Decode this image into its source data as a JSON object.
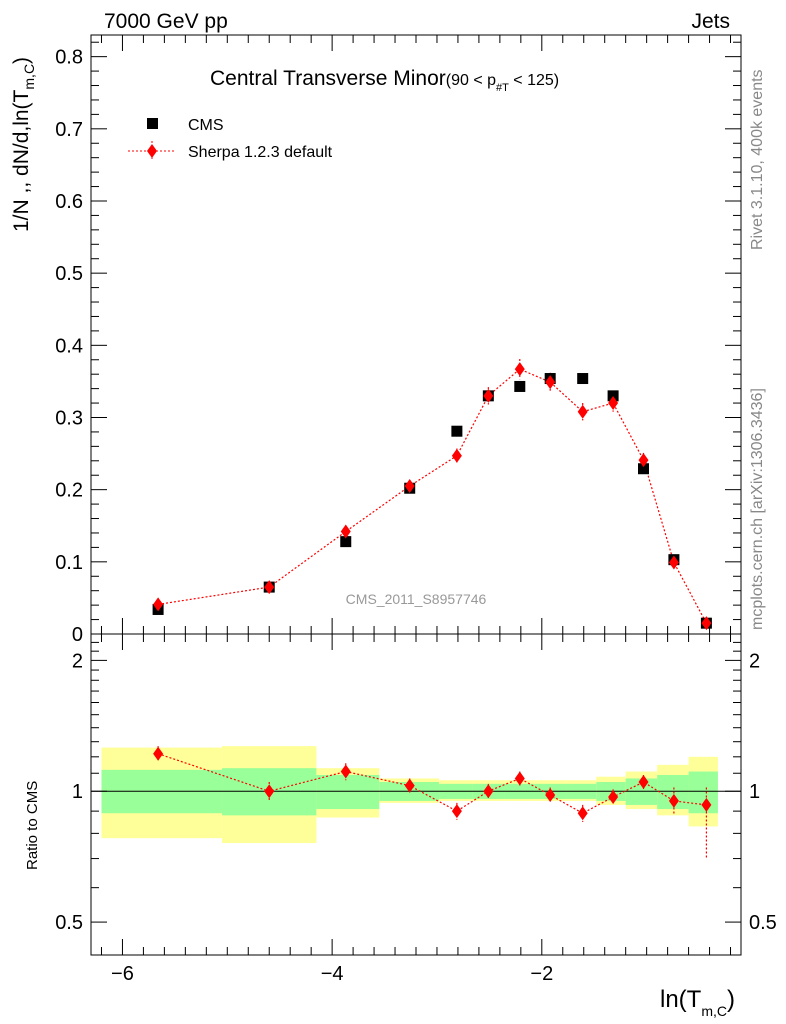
{
  "header": {
    "left": "7000 GeV pp",
    "right": "Jets"
  },
  "side_text": {
    "rivet": "Rivet 3.1.10,  400k events",
    "mcplots": "mcplots.cern.ch [arXiv:1306.3436]"
  },
  "colors": {
    "data": "#000000",
    "mc": "#ff0000",
    "band_inner": "#99ff99",
    "band_outer": "#ffff99"
  },
  "chart_data": {
    "type": "scatter",
    "title": "Central Transverse Minor",
    "title_suffix": "(90 < p",
    "title_suffix_sub": "#T",
    "title_suffix_end": " < 125)",
    "watermark": "CMS_2011_S8957746",
    "xlabel": "ln(T",
    "xlabel_sub": "m,C",
    "xlabel_end": ")",
    "ylabel": "1/N ,, dN/d,ln(T",
    "ylabel_sub": "m,C",
    "ylabel_end": ")",
    "ratio_ylabel": "Ratio to CMS",
    "xlim": [
      -6.3,
      -0.1
    ],
    "ylim": [
      0,
      0.83
    ],
    "ratio_ylim": [
      0.42,
      2.3
    ],
    "x_ticks": [
      -6,
      -4,
      -2
    ],
    "x_tick_labels": [
      "−6",
      "−4",
      "−2"
    ],
    "y_ticks": [
      0,
      0.1,
      0.2,
      0.3,
      0.4,
      0.5,
      0.6,
      0.7,
      0.8
    ],
    "y_tick_labels": [
      "0",
      "0.1",
      "0.2",
      "0.3",
      "0.4",
      "0.5",
      "0.6",
      "0.7",
      "0.8"
    ],
    "ratio_ticks": [
      0.5,
      1,
      2
    ],
    "ratio_tick_labels": [
      "0.5",
      "1",
      "2"
    ],
    "legend": {
      "data_label": "CMS",
      "mc_label": "Sherpa 1.2.3 default",
      "placement": "top-left"
    },
    "bins": [
      {
        "lo": -6.2,
        "hi": -5.05
      },
      {
        "lo": -5.05,
        "hi": -4.15
      },
      {
        "lo": -4.15,
        "hi": -3.55
      },
      {
        "lo": -3.55,
        "hi": -2.98
      },
      {
        "lo": -2.98,
        "hi": -2.66
      },
      {
        "lo": -2.66,
        "hi": -2.36
      },
      {
        "lo": -2.36,
        "hi": -2.07
      },
      {
        "lo": -2.07,
        "hi": -1.76
      },
      {
        "lo": -1.76,
        "hi": -1.48
      },
      {
        "lo": -1.48,
        "hi": -1.2
      },
      {
        "lo": -1.2,
        "hi": -0.9
      },
      {
        "lo": -0.9,
        "hi": -0.6
      },
      {
        "lo": -0.6,
        "hi": -0.32
      }
    ],
    "series": [
      {
        "name": "CMS",
        "x": [
          -5.66,
          -4.6,
          -3.87,
          -3.26,
          -2.81,
          -2.51,
          -2.21,
          -1.92,
          -1.61,
          -1.32,
          -1.03,
          -0.74,
          -0.43
        ],
        "y": [
          0.034,
          0.065,
          0.128,
          0.202,
          0.281,
          0.33,
          0.343,
          0.354,
          0.354,
          0.33,
          0.229,
          0.103,
          0.015
        ]
      },
      {
        "name": "Sherpa 1.2.3 default",
        "x": [
          -5.66,
          -4.6,
          -3.87,
          -3.26,
          -2.81,
          -2.51,
          -2.21,
          -1.92,
          -1.61,
          -1.32,
          -1.03,
          -0.74,
          -0.43
        ],
        "y": [
          0.041,
          0.065,
          0.142,
          0.205,
          0.247,
          0.33,
          0.367,
          0.349,
          0.308,
          0.32,
          0.241,
          0.099,
          0.015
        ],
        "yerr": [
          0.003,
          0.004,
          0.006,
          0.007,
          0.01,
          0.012,
          0.014,
          0.013,
          0.012,
          0.012,
          0.01,
          0.007,
          0.002
        ]
      }
    ],
    "ratio": {
      "values": [
        1.22,
        1.0,
        1.11,
        1.03,
        0.9,
        1.0,
        1.07,
        0.98,
        0.89,
        0.97,
        1.05,
        0.95,
        0.93
      ],
      "err_up": [
        0.05,
        0.05,
        0.05,
        0.04,
        0.04,
        0.04,
        0.04,
        0.04,
        0.04,
        0.04,
        0.04,
        0.07,
        0.09
      ],
      "err_dn": [
        0.05,
        0.05,
        0.05,
        0.04,
        0.04,
        0.04,
        0.04,
        0.04,
        0.04,
        0.04,
        0.04,
        0.07,
        0.23
      ],
      "band_inner_lo": [
        0.89,
        0.88,
        0.91,
        0.95,
        0.96,
        0.96,
        0.96,
        0.96,
        0.96,
        0.95,
        0.93,
        0.91,
        0.89
      ],
      "band_inner_hi": [
        1.12,
        1.13,
        1.09,
        1.05,
        1.04,
        1.04,
        1.04,
        1.04,
        1.04,
        1.05,
        1.07,
        1.09,
        1.11
      ],
      "band_outer_lo": [
        0.78,
        0.76,
        0.87,
        0.94,
        0.95,
        0.95,
        0.95,
        0.95,
        0.95,
        0.93,
        0.91,
        0.88,
        0.83
      ],
      "band_outer_hi": [
        1.26,
        1.27,
        1.13,
        1.07,
        1.06,
        1.06,
        1.06,
        1.06,
        1.06,
        1.08,
        1.11,
        1.15,
        1.2
      ]
    }
  }
}
